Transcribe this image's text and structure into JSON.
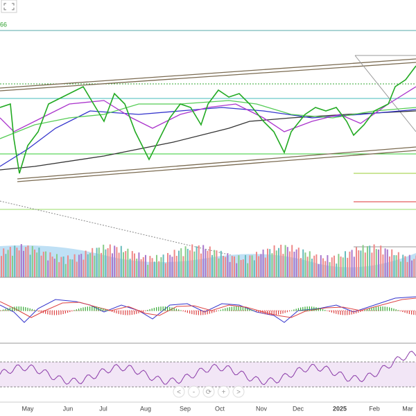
{
  "toolbar": {
    "label_fragment": "66"
  },
  "x_axis": {
    "labels": [
      "May",
      "Jun",
      "Jul",
      "Aug",
      "Sep",
      "Oct",
      "Nov",
      "Dec",
      "2025",
      "Feb",
      "Mar"
    ]
  },
  "navigation": {
    "buttons": [
      "<",
      "-",
      "⟳",
      "+",
      ">"
    ]
  }
}
